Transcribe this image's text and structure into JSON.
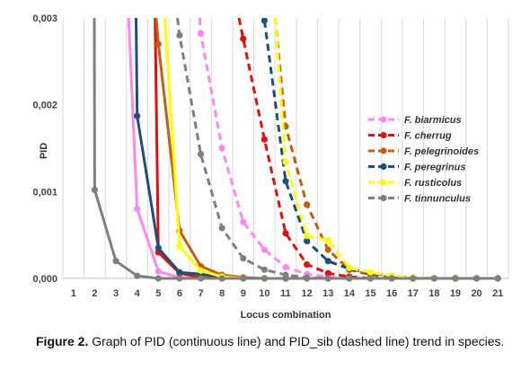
{
  "chart_data": {
    "type": "line",
    "xlabel": "Locus combination",
    "ylabel": "PID",
    "ylim": [
      0,
      0.003
    ],
    "yticks": [
      "0,000",
      "0,001",
      "0,002",
      "0,003"
    ],
    "categories": [
      "1",
      "2",
      "3",
      "4",
      "5",
      "6",
      "7",
      "8",
      "9",
      "10",
      "11",
      "12",
      "13",
      "14",
      "15",
      "16",
      "17",
      "18",
      "19",
      "20",
      "21"
    ],
    "grid": "vertical",
    "legend_position": "right",
    "series": [
      {
        "name": "F. biarmicus",
        "line": "solid",
        "color": "#ff88ee",
        "points": [
          [
            3.6,
            0.003
          ],
          [
            4,
            0.0008
          ],
          [
            5,
            8e-05
          ],
          [
            6,
            1e-05
          ],
          [
            7,
            0.0
          ],
          [
            8,
            0.0
          ],
          [
            9,
            0.0
          ],
          [
            10,
            0.0
          ],
          [
            11,
            0.0
          ],
          [
            12,
            0.0
          ],
          [
            13,
            0.0
          ],
          [
            14,
            0.0
          ],
          [
            15,
            0.0
          ],
          [
            16,
            0.0
          ],
          [
            17,
            0.0
          ],
          [
            18,
            0.0
          ],
          [
            19,
            0.0
          ],
          [
            20,
            0.0
          ],
          [
            21,
            0.0
          ]
        ]
      },
      {
        "name": "F. cherrug",
        "line": "solid",
        "color": "#e01010",
        "points": [
          [
            4.85,
            0.003
          ],
          [
            5,
            0.0003
          ],
          [
            6,
            6e-05
          ],
          [
            7,
            1e-05
          ],
          [
            8,
            0.0
          ],
          [
            9,
            0.0
          ],
          [
            10,
            0.0
          ],
          [
            11,
            0.0
          ],
          [
            12,
            0.0
          ],
          [
            13,
            0.0
          ],
          [
            14,
            0.0
          ],
          [
            15,
            0.0
          ],
          [
            16,
            0.0
          ],
          [
            17,
            0.0
          ],
          [
            18,
            0.0
          ],
          [
            19,
            0.0
          ],
          [
            20,
            0.0
          ],
          [
            21,
            0.0
          ]
        ]
      },
      {
        "name": "F. pelegrinoides",
        "line": "solid",
        "color": "#c06010",
        "points": [
          [
            4.9,
            0.003
          ],
          [
            5,
            0.0027
          ],
          [
            6,
            0.00055
          ],
          [
            7,
            0.00014
          ],
          [
            8,
            4e-05
          ],
          [
            9,
            1e-05
          ],
          [
            10,
            0.0
          ],
          [
            11,
            0.0
          ],
          [
            12,
            0.0
          ],
          [
            13,
            0.0
          ],
          [
            14,
            0.0
          ],
          [
            15,
            0.0
          ],
          [
            16,
            0.0
          ],
          [
            17,
            0.0
          ],
          [
            18,
            0.0
          ],
          [
            19,
            0.0
          ],
          [
            20,
            0.0
          ],
          [
            21,
            0.0
          ]
        ]
      },
      {
        "name": "F. peregrinus",
        "line": "solid",
        "color": "#1f4e79",
        "points": [
          [
            3.95,
            0.003
          ],
          [
            4,
            0.00187
          ],
          [
            5,
            0.00035
          ],
          [
            6,
            7e-05
          ],
          [
            7,
            5e-05
          ],
          [
            8,
            1e-05
          ],
          [
            9,
            0.0
          ],
          [
            10,
            0.0
          ],
          [
            11,
            0.0
          ],
          [
            12,
            0.0
          ],
          [
            13,
            0.0
          ],
          [
            14,
            0.0
          ],
          [
            15,
            0.0
          ],
          [
            16,
            0.0
          ],
          [
            17,
            0.0
          ],
          [
            18,
            0.0
          ],
          [
            19,
            0.0
          ],
          [
            20,
            0.0
          ],
          [
            21,
            0.0
          ]
        ]
      },
      {
        "name": "F. rusticolus",
        "line": "solid",
        "color": "#ffff00",
        "points": [
          [
            5.3,
            0.003
          ],
          [
            6,
            0.00037
          ],
          [
            7,
            9e-05
          ],
          [
            8,
            2e-05
          ],
          [
            9,
            0.0
          ],
          [
            10,
            0.0
          ],
          [
            11,
            0.0
          ],
          [
            12,
            0.0
          ],
          [
            13,
            0.0
          ],
          [
            14,
            0.0
          ],
          [
            15,
            0.0
          ],
          [
            16,
            0.0
          ],
          [
            17,
            0.0
          ],
          [
            18,
            0.0
          ],
          [
            19,
            0.0
          ],
          [
            20,
            0.0
          ],
          [
            21,
            0.0
          ]
        ]
      },
      {
        "name": "F. tinnunculus",
        "line": "solid",
        "color": "#7f7f7f",
        "points": [
          [
            1.98,
            0.003
          ],
          [
            2,
            0.00102
          ],
          [
            3,
            0.0002
          ],
          [
            4,
            3e-05
          ],
          [
            5,
            0.0
          ],
          [
            6,
            0.0
          ],
          [
            7,
            0.0
          ],
          [
            8,
            0.0
          ],
          [
            9,
            0.0
          ],
          [
            10,
            0.0
          ],
          [
            11,
            0.0
          ],
          [
            12,
            0.0
          ],
          [
            13,
            0.0
          ],
          [
            14,
            0.0
          ],
          [
            15,
            0.0
          ],
          [
            16,
            0.0
          ],
          [
            17,
            0.0
          ],
          [
            18,
            0.0
          ],
          [
            19,
            0.0
          ],
          [
            20,
            0.0
          ],
          [
            21,
            0.0
          ]
        ]
      },
      {
        "name": "F. biarmicus",
        "line": "dashed",
        "color": "#ff88ee",
        "points": [
          [
            6.95,
            0.003
          ],
          [
            7,
            0.00282
          ],
          [
            8,
            0.0015
          ],
          [
            9,
            0.00065
          ],
          [
            10,
            0.00033
          ],
          [
            11,
            0.00013
          ],
          [
            12,
            5e-05
          ],
          [
            13,
            2e-05
          ],
          [
            14,
            0.0
          ],
          [
            15,
            0.0
          ],
          [
            16,
            0.0
          ],
          [
            17,
            0.0
          ],
          [
            18,
            0.0
          ],
          [
            19,
            0.0
          ],
          [
            20,
            0.0
          ],
          [
            21,
            0.0
          ]
        ]
      },
      {
        "name": "F. cherrug",
        "line": "dashed",
        "color": "#e01010",
        "points": [
          [
            8.8,
            0.003
          ],
          [
            9,
            0.00276
          ],
          [
            10,
            0.0016
          ],
          [
            11,
            0.00052
          ],
          [
            12,
            0.00016
          ],
          [
            13,
            6e-05
          ],
          [
            14,
            2e-05
          ],
          [
            15,
            0.0
          ],
          [
            16,
            0.0
          ],
          [
            17,
            0.0
          ],
          [
            18,
            0.0
          ],
          [
            19,
            0.0
          ],
          [
            20,
            0.0
          ],
          [
            21,
            0.0
          ]
        ]
      },
      {
        "name": "F. pelegrinoides",
        "line": "dashed",
        "color": "#c06010",
        "points": [
          [
            10.5,
            0.003
          ],
          [
            11,
            0.00175
          ],
          [
            12,
            0.00085
          ],
          [
            13,
            0.00033
          ],
          [
            14,
            0.0001
          ],
          [
            15,
            4e-05
          ],
          [
            16,
            1e-05
          ],
          [
            17,
            0.0
          ],
          [
            18,
            0.0
          ],
          [
            19,
            0.0
          ],
          [
            20,
            0.0
          ],
          [
            21,
            0.0
          ]
        ]
      },
      {
        "name": "F. peregrinus",
        "line": "dashed",
        "color": "#1f4e79",
        "points": [
          [
            10,
            0.00297
          ],
          [
            11,
            0.00112
          ],
          [
            12,
            0.00043
          ],
          [
            13,
            0.0002
          ],
          [
            14,
            0.00011
          ],
          [
            15,
            6e-05
          ],
          [
            16,
            3e-05
          ],
          [
            17,
            1e-05
          ],
          [
            18,
            0.0
          ],
          [
            19,
            0.0
          ],
          [
            20,
            0.0
          ],
          [
            21,
            0.0
          ]
        ]
      },
      {
        "name": "F. rusticolus",
        "line": "dashed",
        "color": "#ffff00",
        "points": [
          [
            10.5,
            0.003
          ],
          [
            11,
            0.00134
          ],
          [
            12,
            0.00049
          ],
          [
            13,
            0.00044
          ],
          [
            14,
            0.00012
          ],
          [
            15,
            7e-05
          ],
          [
            16,
            3e-05
          ],
          [
            17,
            1e-05
          ],
          [
            18,
            0.0
          ],
          [
            19,
            0.0
          ],
          [
            20,
            0.0
          ],
          [
            21,
            0.0
          ]
        ]
      },
      {
        "name": "F. tinnunculus",
        "line": "dashed",
        "color": "#7f7f7f",
        "points": [
          [
            5.9,
            0.003
          ],
          [
            6,
            0.0028
          ],
          [
            7,
            0.00143
          ],
          [
            8,
            0.00058
          ],
          [
            9,
            0.00023
          ],
          [
            10,
            0.0001
          ],
          [
            11,
            4e-05
          ],
          [
            12,
            1e-05
          ],
          [
            13,
            0.0
          ],
          [
            14,
            0.0
          ],
          [
            15,
            0.0
          ],
          [
            16,
            0.0
          ],
          [
            17,
            0.0
          ],
          [
            18,
            0.0
          ],
          [
            19,
            0.0
          ],
          [
            20,
            0.0
          ],
          [
            21,
            0.0
          ]
        ]
      }
    ],
    "legend": [
      {
        "label": "F. biarmicus",
        "color": "#ff88ee"
      },
      {
        "label": "F. cherrug",
        "color": "#e01010"
      },
      {
        "label": "F. pelegrinoides",
        "color": "#c06010"
      },
      {
        "label": "F. peregrinus",
        "color": "#1f4e79"
      },
      {
        "label": "F. rusticolus",
        "color": "#ffff00"
      },
      {
        "label": "F. tinnunculus",
        "color": "#7f7f7f"
      }
    ]
  },
  "caption": {
    "label": "Figure 2.",
    "text": " Graph of PID (continuous line) and PID_sib (dashed line) trend in species."
  }
}
